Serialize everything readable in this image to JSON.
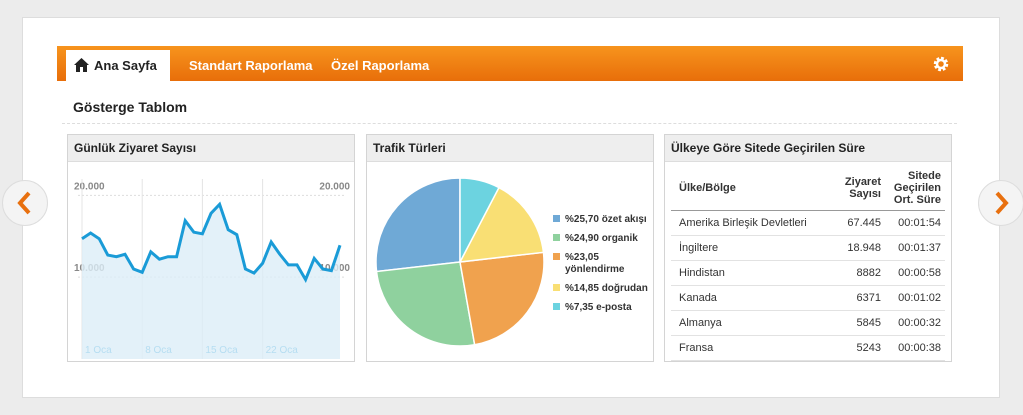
{
  "nav": {
    "tabs": [
      "Ana Sayfa",
      "Standart Raporlama",
      "Özel Raporlama"
    ]
  },
  "page_title": "Gösterge Tablom",
  "line_chart": {
    "type": "line",
    "title": "Günlük Ziyaret Sayısı",
    "color": "#1a9bd7",
    "categories": [
      "1 Oca",
      null,
      null,
      null,
      null,
      null,
      null,
      "8 Oca",
      null,
      null,
      null,
      null,
      null,
      null,
      "15 Oca",
      null,
      null,
      null,
      null,
      null,
      null,
      "22 Oca",
      null,
      null,
      null,
      null,
      null,
      null,
      null,
      null,
      null
    ],
    "values": [
      14700,
      15400,
      14700,
      12700,
      12500,
      12800,
      11000,
      10600,
      13100,
      12200,
      12500,
      12500,
      16900,
      15500,
      15300,
      17800,
      18900,
      15800,
      15200,
      11000,
      10500,
      11700,
      14300,
      12800,
      11500,
      11500,
      9700,
      12300,
      11000,
      10800,
      13900
    ],
    "ylim": [
      0,
      22000
    ],
    "yticks": [
      {
        "value": 10000,
        "label": "10.000"
      },
      {
        "value": 20000,
        "label": "20.000"
      }
    ],
    "grid": true
  },
  "pie_chart": {
    "type": "pie",
    "title": "Trafik Türleri",
    "values": [
      25.7,
      24.9,
      23.05,
      14.85,
      7.35
    ],
    "labels": [
      "%25,70 özet akışı",
      "%24,90 organik",
      "%23,05 yönlendirme",
      "%14,85 doğrudan",
      "%7,35 e-posta"
    ],
    "colors": [
      "#6fa9d6",
      "#8fd19e",
      "#f0a24e",
      "#f9df74",
      "#6cd3e0"
    ]
  },
  "table": {
    "title": "Ülkeye Göre Sitede Geçirilen Süre",
    "header": [
      "Ülke/Bölge",
      "Ziyaret Sayısı",
      "Sitede Geçirilen Ort. Süre"
    ],
    "rows": [
      [
        "Amerika Birleşik Devletleri",
        "67.445",
        "00:01:54"
      ],
      [
        "İngiltere",
        "18.948",
        "00:01:37"
      ],
      [
        "Hindistan",
        "8882",
        "00:00:58"
      ],
      [
        "Kanada",
        "6371",
        "00:01:02"
      ],
      [
        "Almanya",
        "5845",
        "00:00:32"
      ],
      [
        "Fransa",
        "5243",
        "00:00:38"
      ]
    ]
  }
}
